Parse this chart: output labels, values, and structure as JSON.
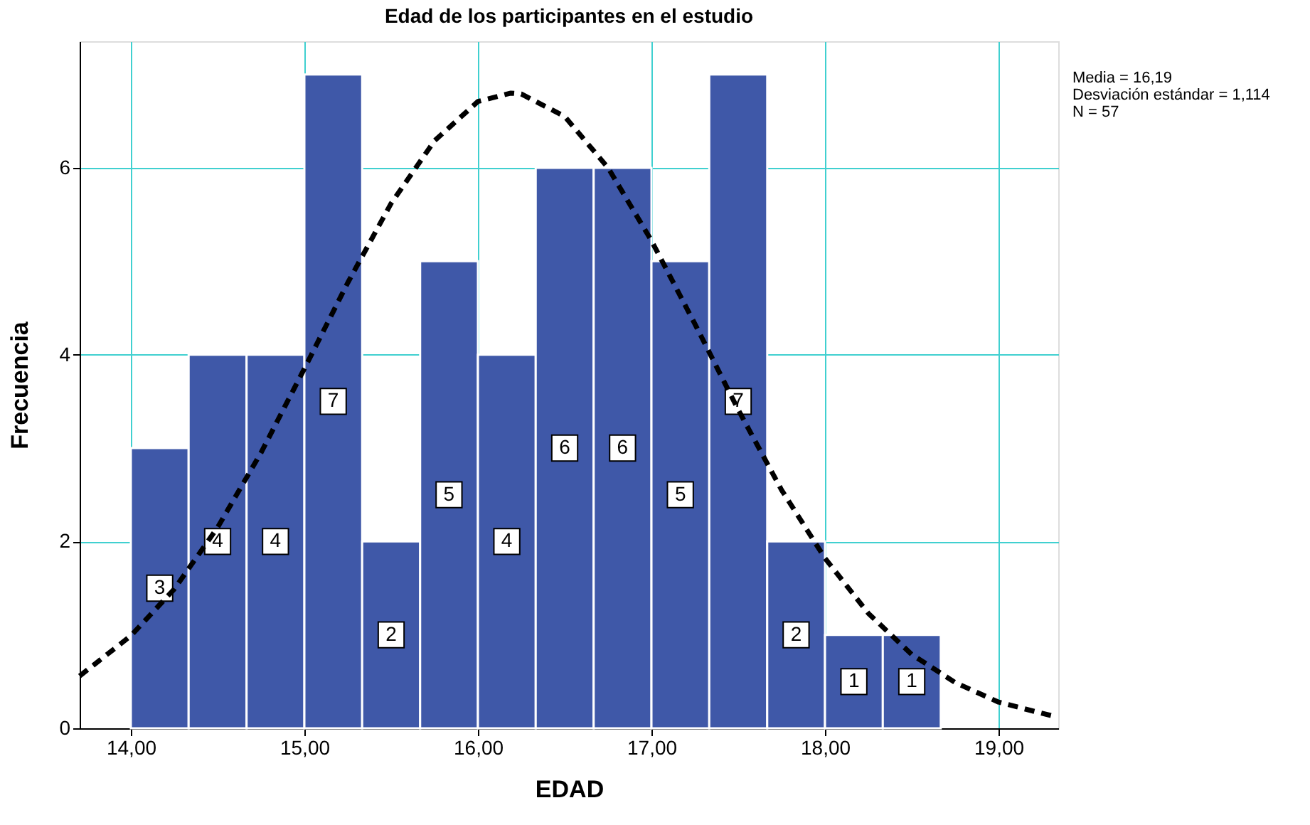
{
  "chart_data": {
    "type": "histogram",
    "title": "Edad de los participantes en el estudio",
    "xlabel": "EDAD",
    "ylabel": "Frecuencia",
    "annotations": [
      "Media = 16,19",
      "Desviación estándar = 1,114",
      "N = 57"
    ],
    "xlim": [
      13.705,
      19.344
    ],
    "ylim": [
      0,
      7.355
    ],
    "xticks": [
      {
        "value": 14,
        "label": "14,00"
      },
      {
        "value": 15,
        "label": "15,00"
      },
      {
        "value": 16,
        "label": "16,00"
      },
      {
        "value": 17,
        "label": "17,00"
      },
      {
        "value": 18,
        "label": "18,00"
      },
      {
        "value": 19,
        "label": "19,00"
      }
    ],
    "yticks": [
      0,
      2,
      4,
      6
    ],
    "grid": true,
    "series": [
      {
        "color": "#3f58a8",
        "value_labels": [
          "3",
          "4",
          "4",
          "7",
          "2",
          "5",
          "4",
          "6",
          "6",
          "5",
          "7",
          "2",
          "1",
          "1"
        ],
        "bins": [
          14,
          14.333,
          14.667,
          15,
          15.333,
          15.667,
          16,
          16.333,
          16.667,
          17,
          17.333,
          17.667,
          18,
          18.333,
          18.667
        ],
        "values": [
          3,
          4,
          4,
          7,
          2,
          5,
          4,
          6,
          6,
          5,
          7,
          2,
          1,
          1
        ]
      },
      {
        "type": "line",
        "color": "#000000",
        "line_style": "dashed",
        "x": [
          13.705,
          14.0,
          14.25,
          14.5,
          14.75,
          15.0,
          15.25,
          15.5,
          15.75,
          16.0,
          16.19,
          16.25,
          16.5,
          16.75,
          17.0,
          17.25,
          17.5,
          17.75,
          18.0,
          18.25,
          18.5,
          18.75,
          19.0,
          19.25,
          19.34
        ],
        "values": [
          0.56,
          0.99,
          1.49,
          2.15,
          2.95,
          3.85,
          4.77,
          5.62,
          6.29,
          6.71,
          6.8,
          6.79,
          6.55,
          6.0,
          5.22,
          4.33,
          3.41,
          2.55,
          1.82,
          1.23,
          0.79,
          0.49,
          0.28,
          0.16,
          0.12
        ]
      }
    ]
  }
}
